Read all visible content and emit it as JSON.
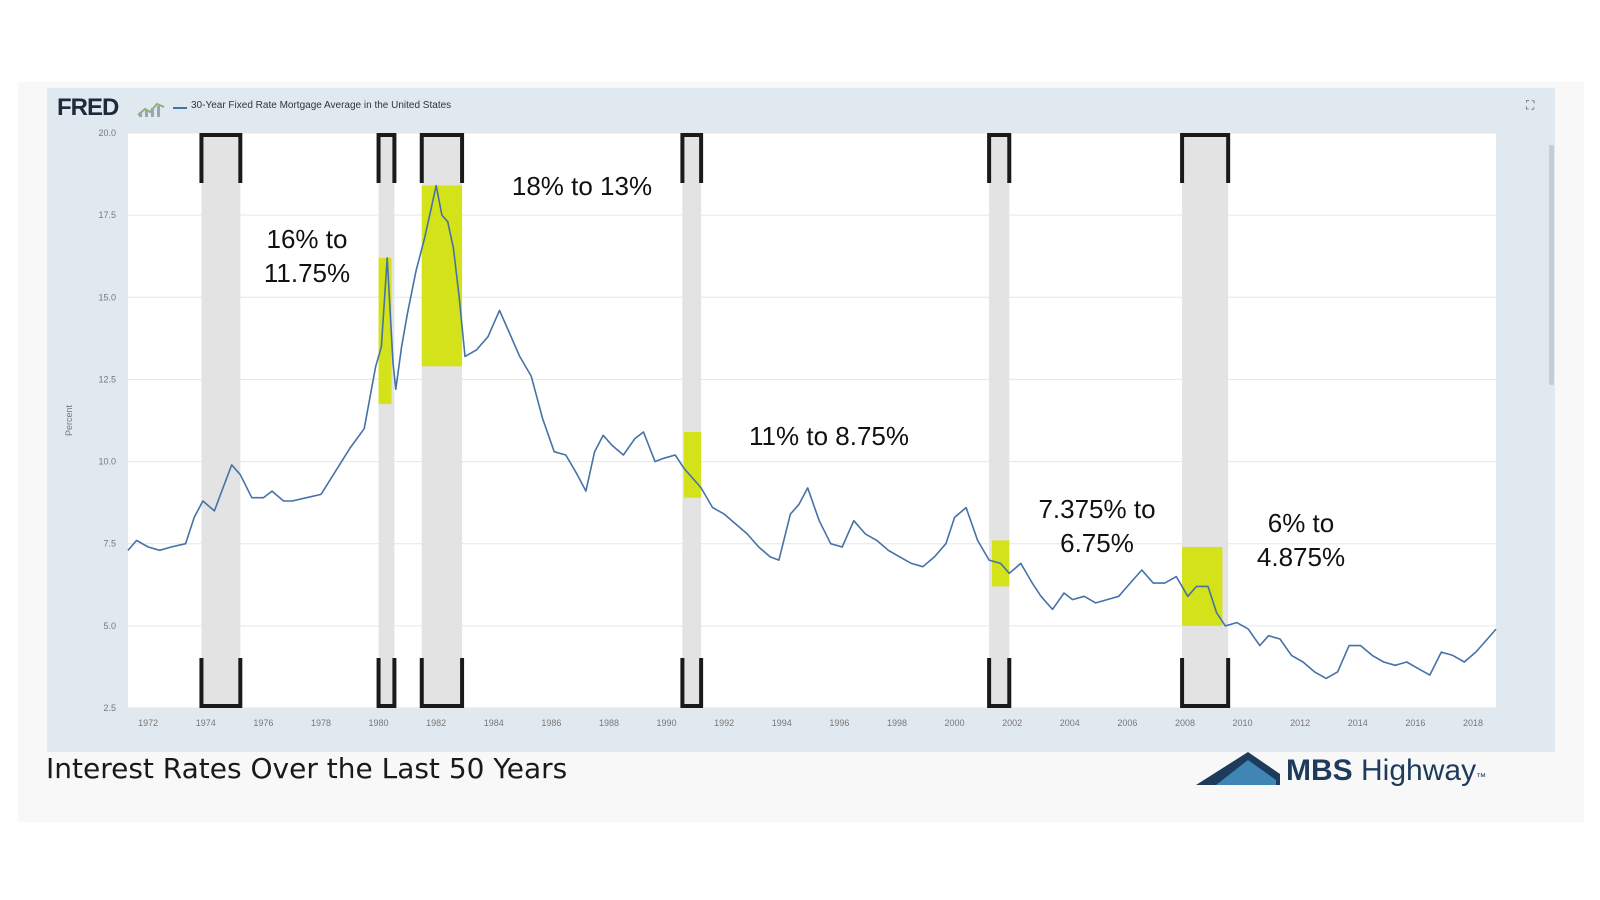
{
  "header": {
    "logo": "FRED",
    "logo_icon": "fred-chart-mark-icon",
    "series_title": "30-Year Fixed Rate Mortgage Average in the United States",
    "expand_icon": "expand-icon"
  },
  "caption": "Interest Rates Over the Last 50 Years",
  "brand": {
    "name_bold": "MBS",
    "name_regular": "Highway",
    "tm": "™",
    "icon": "mountain-logo-icon"
  },
  "colors": {
    "line": "#4572a7",
    "recession_band": "#e3e3e3",
    "highlight": "#d4e21a",
    "bracket": "#1a1a1a",
    "panel": "#e1e9f0"
  },
  "chart_data": {
    "type": "line",
    "ylabel": "Percent",
    "ylim": [
      2.5,
      20.0
    ],
    "yticks": [
      "2.5",
      "5.0",
      "7.5",
      "10.0",
      "12.5",
      "15.0",
      "17.5",
      "20.0"
    ],
    "xlim": [
      1971.3,
      2018.8
    ],
    "xticks": [
      "1972",
      "1974",
      "1976",
      "1978",
      "1980",
      "1982",
      "1984",
      "1986",
      "1988",
      "1990",
      "1992",
      "1994",
      "1996",
      "1998",
      "2000",
      "2002",
      "2004",
      "2006",
      "2008",
      "2010",
      "2012",
      "2014",
      "2016",
      "2018"
    ],
    "grid": "horizontal",
    "series": [
      {
        "name": "30-Year Fixed Rate Mortgage Average in the United States",
        "x": [
          1971.3,
          1971.6,
          1972.0,
          1972.4,
          1972.8,
          1973.3,
          1973.6,
          1973.9,
          1974.3,
          1974.6,
          1974.9,
          1975.2,
          1975.6,
          1976.0,
          1976.3,
          1976.7,
          1977.0,
          1977.5,
          1978.0,
          1978.5,
          1979.0,
          1979.5,
          1979.9,
          1980.1,
          1980.3,
          1980.5,
          1980.6,
          1980.8,
          1981.0,
          1981.3,
          1981.6,
          1981.8,
          1982.0,
          1982.2,
          1982.4,
          1982.6,
          1982.8,
          1983.0,
          1983.4,
          1983.8,
          1984.2,
          1984.5,
          1984.9,
          1985.3,
          1985.7,
          1986.1,
          1986.5,
          1986.9,
          1987.2,
          1987.5,
          1987.8,
          1988.1,
          1988.5,
          1988.9,
          1989.2,
          1989.6,
          1989.9,
          1990.3,
          1990.6,
          1990.9,
          1991.2,
          1991.6,
          1992.0,
          1992.4,
          1992.8,
          1993.2,
          1993.6,
          1993.9,
          1994.3,
          1994.6,
          1994.9,
          1995.3,
          1995.7,
          1996.1,
          1996.5,
          1996.9,
          1997.3,
          1997.7,
          1998.1,
          1998.5,
          1998.9,
          1999.3,
          1999.7,
          2000.0,
          2000.4,
          2000.8,
          2001.2,
          2001.6,
          2001.9,
          2002.3,
          2002.7,
          2003.0,
          2003.4,
          2003.8,
          2004.1,
          2004.5,
          2004.9,
          2005.3,
          2005.7,
          2006.1,
          2006.5,
          2006.9,
          2007.3,
          2007.7,
          2008.1,
          2008.4,
          2008.8,
          2009.1,
          2009.4,
          2009.8,
          2010.2,
          2010.6,
          2010.9,
          2011.3,
          2011.7,
          2012.1,
          2012.5,
          2012.9,
          2013.3,
          2013.7,
          2014.1,
          2014.5,
          2014.9,
          2015.3,
          2015.7,
          2016.1,
          2016.5,
          2016.9,
          2017.3,
          2017.7,
          2018.1,
          2018.5,
          2018.8
        ],
        "y": [
          7.3,
          7.6,
          7.4,
          7.3,
          7.4,
          7.5,
          8.3,
          8.8,
          8.5,
          9.2,
          9.9,
          9.6,
          8.9,
          8.9,
          9.1,
          8.8,
          8.8,
          8.9,
          9.0,
          9.7,
          10.4,
          11.0,
          12.9,
          13.5,
          16.2,
          13.0,
          12.2,
          13.5,
          14.5,
          15.8,
          16.8,
          17.6,
          18.4,
          17.5,
          17.3,
          16.5,
          15.0,
          13.2,
          13.4,
          13.8,
          14.6,
          14.0,
          13.2,
          12.6,
          11.3,
          10.3,
          10.2,
          9.6,
          9.1,
          10.3,
          10.8,
          10.5,
          10.2,
          10.7,
          10.9,
          10.0,
          10.1,
          10.2,
          9.8,
          9.5,
          9.2,
          8.6,
          8.4,
          8.1,
          7.8,
          7.4,
          7.1,
          7.0,
          8.4,
          8.7,
          9.2,
          8.2,
          7.5,
          7.4,
          8.2,
          7.8,
          7.6,
          7.3,
          7.1,
          6.9,
          6.8,
          7.1,
          7.5,
          8.3,
          8.6,
          7.6,
          7.0,
          6.9,
          6.6,
          6.9,
          6.3,
          5.9,
          5.5,
          6.0,
          5.8,
          5.9,
          5.7,
          5.8,
          5.9,
          6.3,
          6.7,
          6.3,
          6.3,
          6.5,
          5.9,
          6.2,
          6.2,
          5.4,
          5.0,
          5.1,
          4.9,
          4.4,
          4.7,
          4.6,
          4.1,
          3.9,
          3.6,
          3.4,
          3.6,
          4.4,
          4.4,
          4.1,
          3.9,
          3.8,
          3.9,
          3.7,
          3.5,
          4.2,
          4.1,
          3.9,
          4.2,
          4.6,
          4.9
        ]
      }
    ],
    "annotations": [
      {
        "lines": [
          "16% to",
          "11.75%"
        ]
      },
      {
        "lines": [
          "18% to 13%"
        ]
      },
      {
        "lines": [
          "11% to 8.75%"
        ]
      },
      {
        "lines": [
          "7.375% to",
          "6.75%"
        ]
      },
      {
        "lines": [
          "6% to",
          "4.875%"
        ]
      }
    ]
  }
}
